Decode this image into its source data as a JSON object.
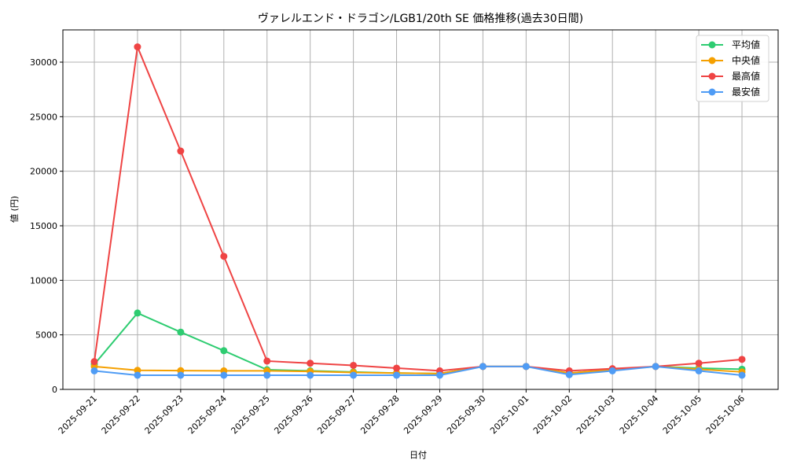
{
  "chart_data": {
    "type": "line",
    "title": "ヴァレルエンド・ドラゴン/LGB1/20th SE 価格推移(過去30日間)",
    "xlabel": "日付",
    "ylabel": "値 (円)",
    "ylim": [
      0,
      32900
    ],
    "yticks": [
      0,
      5000,
      10000,
      15000,
      20000,
      25000,
      30000
    ],
    "grid": true,
    "legend_position": "upper right",
    "categories": [
      "2025-09-21",
      "2025-09-22",
      "2025-09-23",
      "2025-09-24",
      "2025-09-25",
      "2025-09-26",
      "2025-09-27",
      "2025-09-28",
      "2025-09-29",
      "2025-09-30",
      "2025-10-01",
      "2025-10-02",
      "2025-10-03",
      "2025-10-04",
      "2025-10-05",
      "2025-10-06"
    ],
    "series": [
      {
        "name": "平均値",
        "color": "#2ecc71",
        "values": [
          2300,
          7000,
          5250,
          3550,
          1800,
          1700,
          1600,
          1500,
          1450,
          2100,
          2100,
          1500,
          1800,
          2100,
          1950,
          1850
        ]
      },
      {
        "name": "中央値",
        "color": "#f5a000",
        "values": [
          2100,
          1750,
          1720,
          1700,
          1700,
          1650,
          1550,
          1500,
          1450,
          2100,
          2100,
          1500,
          1800,
          2100,
          1850,
          1600
        ]
      },
      {
        "name": "最高値",
        "color": "#ef4444",
        "values": [
          2550,
          31400,
          21850,
          12200,
          2600,
          2400,
          2200,
          1950,
          1700,
          2100,
          2100,
          1700,
          1900,
          2100,
          2400,
          2750
        ]
      },
      {
        "name": "最安値",
        "color": "#4f9cf5",
        "values": [
          1700,
          1300,
          1300,
          1300,
          1300,
          1300,
          1300,
          1300,
          1300,
          2100,
          2100,
          1350,
          1700,
          2100,
          1700,
          1300
        ]
      }
    ]
  }
}
